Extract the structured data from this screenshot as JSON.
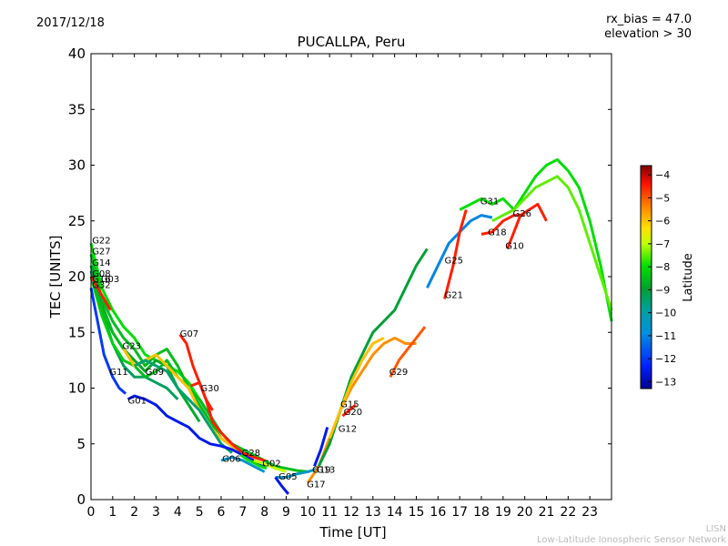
{
  "header": {
    "date": "2017/12/18",
    "rx_bias": "rx_bias = 47.0",
    "elevation": "elevation > 30"
  },
  "footer": {
    "short": "LISN",
    "long": "Low-Latitude Ionospheric Sensor Network"
  },
  "chart_data": {
    "type": "line",
    "title": "PUCALLPA, Peru",
    "xlabel": "Time [UT]",
    "ylabel": "TEC [UNITS]",
    "xlim": [
      0,
      24
    ],
    "ylim": [
      0,
      40
    ],
    "xticks": [
      "0",
      "1",
      "2",
      "3",
      "4",
      "5",
      "6",
      "7",
      "8",
      "9",
      "10",
      "11",
      "12",
      "13",
      "14",
      "15",
      "16",
      "17",
      "18",
      "19",
      "20",
      "21",
      "22",
      "23"
    ],
    "yticks": [
      "0",
      "5",
      "10",
      "15",
      "20",
      "25",
      "30",
      "35",
      "40"
    ],
    "colorbar": {
      "label": "Latitude",
      "range": [
        -13.3,
        -3.6
      ],
      "ticks": [
        "−4",
        "−5",
        "−6",
        "−7",
        "−8",
        "−9",
        "−10",
        "−11",
        "−12",
        "−13"
      ]
    },
    "series": [
      {
        "name": "G22",
        "lat": -8,
        "label_at": [
          0.05,
          23.0
        ],
        "x": [
          0,
          0.5,
          1,
          1.5,
          2,
          2.5,
          3,
          3.5,
          4,
          4.5,
          5,
          5.5,
          6,
          6.5,
          7
        ],
        "y": [
          23,
          19,
          17,
          15.5,
          14.5,
          13,
          12.5,
          12,
          11.5,
          10.5,
          9,
          7.5,
          6,
          5,
          4.5
        ]
      },
      {
        "name": "G27",
        "lat": -8.5,
        "label_at": [
          0.05,
          22.0
        ],
        "x": [
          0,
          0.5,
          1,
          1.5,
          2,
          2.5,
          3,
          3.5,
          4,
          4.5,
          5,
          5.5,
          6,
          6.5,
          7
        ],
        "y": [
          22,
          18,
          16,
          14.5,
          13.5,
          12,
          13,
          13.5,
          12,
          10,
          8.5,
          7,
          5.5,
          4.8,
          4.2
        ]
      },
      {
        "name": "G14",
        "lat": -8.8,
        "label_at": [
          0.05,
          21.0
        ],
        "x": [
          0,
          0.5,
          1,
          1.5,
          2,
          2.5,
          3,
          3.5,
          4,
          4.5,
          5
        ],
        "y": [
          21,
          17.5,
          15,
          13.5,
          12.5,
          11.5,
          12.5,
          12,
          10,
          8.5,
          7
        ]
      },
      {
        "name": "G08",
        "lat": -9.3,
        "label_at": [
          0.05,
          20.0
        ],
        "x": [
          0,
          0.5,
          1,
          1.5,
          2,
          2.5,
          3,
          3.5,
          4
        ],
        "y": [
          20.5,
          17,
          14,
          12,
          11,
          11,
          10.5,
          10,
          9
        ]
      },
      {
        "name": "G16",
        "lat": -8.2,
        "label_at": [
          0.05,
          19.5
        ],
        "x": [
          0,
          0.5,
          1,
          1.5,
          2,
          2.5,
          3
        ],
        "y": [
          20,
          16.5,
          14,
          12.5,
          12,
          12.5,
          13
        ]
      },
      {
        "name": "G03",
        "lat": -8.5,
        "label_at": [
          0.45,
          19.5
        ],
        "x": [
          0,
          0.5,
          1,
          1.5,
          2,
          2.5,
          3,
          3.5,
          4,
          4.5,
          5,
          5.5,
          6,
          6.5,
          7,
          7.5,
          8,
          8.5,
          9,
          9.5,
          10
        ],
        "y": [
          20,
          17,
          15,
          13.5,
          12,
          11,
          11.5,
          12.5,
          11,
          10,
          9,
          7.5,
          6,
          5,
          4.5,
          4,
          3.5,
          3,
          2.8,
          2.6,
          2.5
        ]
      },
      {
        "name": "G32",
        "lat": -4.5,
        "label_at": [
          0.05,
          19.0
        ],
        "x": [
          0,
          0.3,
          0.6,
          0.9
        ],
        "y": [
          20,
          19,
          18,
          17
        ]
      },
      {
        "name": "G23",
        "lat": -6,
        "label_at": [
          1.45,
          13.5
        ],
        "x": [
          1.5,
          2,
          2.5,
          3,
          3.5,
          4,
          4.5,
          5,
          5.5,
          6,
          6.5,
          7
        ],
        "y": [
          13.5,
          12,
          12.5,
          13,
          12,
          11,
          10,
          8,
          6.5,
          5.5,
          4.8,
          4
        ]
      },
      {
        "name": "G11",
        "lat": -12,
        "label_at": [
          0.85,
          11.2
        ],
        "x": [
          0,
          0.3,
          0.6,
          1,
          1.3,
          1.6
        ],
        "y": [
          19,
          16,
          13,
          11,
          10,
          9.5
        ]
      },
      {
        "name": "G09",
        "lat": -9.5,
        "label_at": [
          2.5,
          11.2
        ],
        "x": [
          2,
          2.5,
          3,
          3.5,
          4,
          4.5,
          5,
          5.5,
          6,
          6.5
        ],
        "y": [
          12,
          12.5,
          12,
          11.5,
          10,
          9,
          8,
          6.5,
          5,
          4.2
        ]
      },
      {
        "name": "G01",
        "lat": -12.5,
        "label_at": [
          1.7,
          8.6
        ],
        "x": [
          1.7,
          2,
          2.5,
          3,
          3.5,
          4,
          4.5,
          5,
          5.5,
          6,
          6.5,
          7,
          7.5,
          8
        ],
        "y": [
          9,
          9.3,
          9,
          8.5,
          7.5,
          7,
          6.5,
          5.5,
          5,
          4.8,
          4.5,
          4,
          3.5,
          3
        ]
      },
      {
        "name": "G07",
        "lat": -4.5,
        "label_at": [
          4.1,
          14.6
        ],
        "x": [
          4.1,
          4.4,
          4.7,
          5,
          5.3,
          5.6,
          6,
          6.5,
          7,
          7.5,
          8
        ],
        "y": [
          14.8,
          14,
          12,
          10.5,
          9,
          7,
          6,
          5,
          4.2,
          3.8,
          3.5
        ]
      },
      {
        "name": "G30",
        "lat": -4.5,
        "label_at": [
          5.05,
          9.7
        ],
        "x": [
          4.6,
          5,
          5.3,
          5.6
        ],
        "y": [
          10.2,
          10.5,
          9,
          8
        ]
      },
      {
        "name": "G06",
        "lat": -10.5,
        "label_at": [
          6.05,
          3.4
        ],
        "x": [
          6,
          6.5,
          7,
          7.5,
          8
        ],
        "y": [
          3.5,
          3.8,
          3.5,
          3,
          2.5
        ]
      },
      {
        "name": "G28",
        "lat": -8,
        "label_at": [
          6.95,
          3.9
        ],
        "x": [
          6.9,
          7.2,
          7.5,
          7.8,
          8.1
        ],
        "y": [
          4,
          3.6,
          3.3,
          3,
          2.8
        ]
      },
      {
        "name": "G02",
        "lat": -7,
        "label_at": [
          7.9,
          3.0
        ],
        "x": [
          7.5,
          8,
          8.5,
          9
        ],
        "y": [
          3.5,
          3.2,
          2.8,
          2.5
        ]
      },
      {
        "name": "G05",
        "lat": -10.5,
        "label_at": [
          8.65,
          1.8
        ],
        "x": [
          8.5,
          9,
          9.5,
          10,
          10.5
        ],
        "y": [
          2,
          2,
          2.3,
          2.5,
          2.8
        ]
      },
      {
        "name": "G19",
        "lat": -12.5,
        "label_at": [
          10.2,
          2.4
        ],
        "x": [
          8.5,
          8.8,
          9.1
        ],
        "y": [
          2,
          1.2,
          0.5
        ]
      },
      {
        "name": "G13",
        "lat": -12.5,
        "label_at": [
          10.4,
          2.4
        ],
        "x": [
          10.3,
          10.6,
          10.9
        ],
        "y": [
          3,
          4.5,
          6.5
        ]
      },
      {
        "name": "G17",
        "lat": -5.5,
        "label_at": [
          9.95,
          1.1
        ],
        "x": [
          10,
          10.5,
          11,
          11.5,
          12,
          12.5,
          13,
          13.5,
          14,
          14.5,
          15
        ],
        "y": [
          1.5,
          3,
          5.5,
          8,
          10,
          11.5,
          13,
          14,
          14.5,
          14,
          14
        ]
      },
      {
        "name": "G15",
        "lat": -9,
        "label_at": [
          11.5,
          8.3
        ],
        "x": [
          10.5,
          11,
          11.5,
          12,
          12.5,
          13,
          13.5,
          14,
          14.5,
          15,
          15.5
        ],
        "y": [
          3,
          5,
          8,
          11,
          13,
          15,
          16,
          17,
          19,
          21,
          22.5
        ]
      },
      {
        "name": "G20",
        "lat": -4.5,
        "label_at": [
          11.65,
          7.6
        ],
        "x": [
          11.6,
          11.9,
          12.2
        ],
        "y": [
          7.5,
          8,
          8.5
        ]
      },
      {
        "name": "G12",
        "lat": -6,
        "label_at": [
          11.4,
          6.1
        ],
        "x": [
          11,
          11.5,
          12,
          12.5,
          13,
          13.5
        ],
        "y": [
          5.5,
          8,
          10.5,
          12.5,
          14,
          14.5
        ]
      },
      {
        "name": "G29",
        "lat": -5,
        "label_at": [
          13.75,
          11.2
        ],
        "x": [
          13.8,
          14.2,
          14.6,
          15,
          15.4
        ],
        "y": [
          11,
          12.5,
          13.5,
          14.5,
          15.5
        ]
      },
      {
        "name": "G25",
        "lat": -11,
        "label_at": [
          16.3,
          21.2
        ],
        "x": [
          15.5,
          16,
          16.5,
          17,
          17.5,
          18,
          18.5
        ],
        "y": [
          19,
          21,
          23,
          24,
          25,
          25.5,
          25.3
        ]
      },
      {
        "name": "G21",
        "lat": -4.5,
        "label_at": [
          16.3,
          18.1
        ],
        "x": [
          16.3,
          16.7,
          17,
          17.3
        ],
        "y": [
          18,
          21,
          24,
          26
        ]
      },
      {
        "name": "G31",
        "lat": -8,
        "label_at": [
          17.95,
          26.5
        ],
        "x": [
          17,
          17.5,
          18,
          18.5,
          19,
          19.5,
          20,
          20.5,
          21,
          21.5,
          22,
          22.5,
          23,
          23.5,
          24
        ],
        "y": [
          26,
          26.5,
          27,
          26.5,
          27,
          26,
          27.5,
          29,
          30,
          30.5,
          29.5,
          28,
          25,
          21,
          16
        ]
      },
      {
        "name": "G26",
        "lat": -7.5,
        "label_at": [
          19.45,
          25.4
        ],
        "x": [
          18.5,
          19,
          19.5,
          20,
          20.5,
          21,
          21.5,
          22,
          22.5,
          23,
          23.5,
          24
        ],
        "y": [
          25,
          25.5,
          26,
          27,
          28,
          28.5,
          29,
          28,
          26,
          23,
          20,
          17
        ]
      },
      {
        "name": "G18",
        "lat": -4.5,
        "label_at": [
          18.3,
          23.7
        ],
        "x": [
          18,
          18.5,
          19,
          19.5,
          20
        ],
        "y": [
          23.8,
          24,
          25,
          25.5,
          25.5
        ]
      },
      {
        "name": "G10",
        "lat": -4.5,
        "label_at": [
          19.1,
          22.5
        ],
        "x": [
          19.2,
          19.5,
          19.8,
          20.2,
          20.6,
          21
        ],
        "y": [
          22.5,
          24,
          25.5,
          26,
          26.5,
          25
        ]
      }
    ]
  }
}
